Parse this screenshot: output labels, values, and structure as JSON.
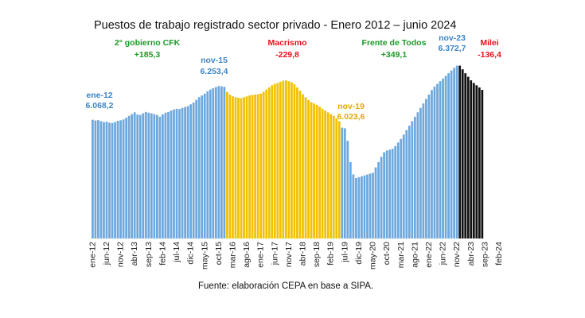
{
  "chart_data": {
    "type": "bar",
    "title": "Puestos de trabajo registrado sector privado - Enero 2012 – junio 2024",
    "source": "Fuente: elaboración CEPA en base a SIPA.",
    "xlabel": "",
    "ylabel": "",
    "grid": false,
    "legend": "none",
    "period": {
      "start": "ene-12",
      "end": "jun-24",
      "frequency": "monthly"
    },
    "ylim": [
      5400,
      6420
    ],
    "series": [
      {
        "period": "Cristina Fernández de Kirchner (2º gobierno)",
        "color": "#6fa8dc",
        "values": [
          6068.2,
          6064,
          6066,
          6060,
          6055,
          6058,
          6052,
          6050,
          6055,
          6062,
          6065,
          6070,
          6080,
          6090,
          6100,
          6110,
          6098,
          6095,
          6105,
          6112,
          6108,
          6104,
          6100,
          6095,
          6085,
          6098,
          6108,
          6112,
          6120,
          6126,
          6130,
          6128,
          6135,
          6140,
          6145,
          6155,
          6165,
          6180,
          6195,
          6205,
          6215,
          6228,
          6238,
          6246,
          6252,
          6258,
          6256,
          6253.4
        ]
      },
      {
        "period": "Macri",
        "color": "#f2c100",
        "values": [
          6225,
          6210,
          6200,
          6195,
          6192,
          6190,
          6195,
          6200,
          6205,
          6208,
          6210,
          6212,
          6215,
          6225,
          6238,
          6250,
          6262,
          6270,
          6275,
          6282,
          6288,
          6290,
          6285,
          6280,
          6268,
          6250,
          6232,
          6212,
          6195,
          6180,
          6168,
          6160,
          6152,
          6142,
          6130,
          6120,
          6110,
          6100,
          6090,
          6076,
          6060
        ]
      },
      {
        "period": "Frente de Todos",
        "color": "#6fa8dc",
        "values": [
          6023.6,
          6020,
          5950,
          5830,
          5760,
          5740,
          5745,
          5750,
          5755,
          5760,
          5765,
          5770,
          5800,
          5830,
          5860,
          5885,
          5895,
          5900,
          5905,
          5920,
          5940,
          5960,
          5985,
          6010,
          6035,
          6060,
          6085,
          6110,
          6135,
          6160,
          6185,
          6210,
          6235,
          6255,
          6270,
          6285,
          6300,
          6315,
          6330,
          6345,
          6360,
          6372.7
        ]
      },
      {
        "period": "Milei",
        "color": "#111111",
        "values": [
          6372.7,
          6352,
          6330,
          6310,
          6290,
          6275,
          6262,
          6250,
          6236.3
        ]
      }
    ],
    "x_tick_labels": [
      "ene-12",
      "jun-12",
      "nov-12",
      "abr-13",
      "sep-13",
      "feb-14",
      "jul-14",
      "dic-14",
      "may-15",
      "oct-15",
      "mar-16",
      "ago-16",
      "ene-17",
      "jun-17",
      "nov-17",
      "abr-18",
      "sep-18",
      "feb-19",
      "jul-19",
      "dic-19",
      "may-20",
      "oct-20",
      "mar-21",
      "ago-21",
      "ene-22",
      "jun-22",
      "nov-22",
      "abr-23",
      "sep-23",
      "feb-24"
    ],
    "annotations": [
      {
        "text": "2° gobierno CFK",
        "color": "#1a9b26"
      },
      {
        "text": "+185,3",
        "color": "#1a9b26"
      },
      {
        "text": "Macrismo",
        "color": "#e8101a"
      },
      {
        "text": "-229,8",
        "color": "#e8101a"
      },
      {
        "text": "Frente de Todos",
        "color": "#1a9b26"
      },
      {
        "text": "+349,1",
        "color": "#1a9b26"
      },
      {
        "text": "Milei",
        "color": "#e8101a"
      },
      {
        "text": "-136,4",
        "color": "#e8101a"
      },
      {
        "text": "ene-12",
        "color": "#3d85c6"
      },
      {
        "text": "6.068,2",
        "color": "#3d85c6"
      },
      {
        "text": "nov-15",
        "color": "#3d85c6"
      },
      {
        "text": "6.253,4",
        "color": "#3d85c6"
      },
      {
        "text": "nov-19",
        "color": "#e6a800"
      },
      {
        "text": "6.023,6",
        "color": "#e6a800"
      },
      {
        "text": "nov-23",
        "color": "#3d85c6"
      },
      {
        "text": "6.372,7",
        "color": "#3d85c6"
      }
    ]
  }
}
